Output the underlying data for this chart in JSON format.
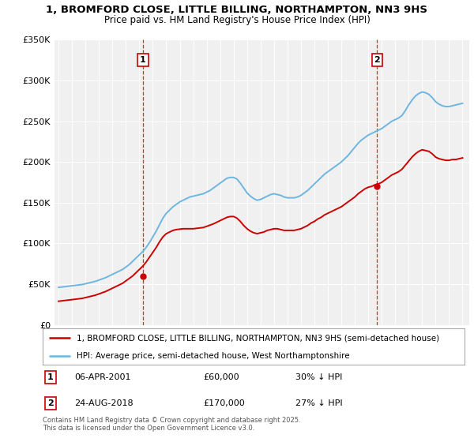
{
  "title": "1, BROMFORD CLOSE, LITTLE BILLING, NORTHAMPTON, NN3 9HS",
  "subtitle": "Price paid vs. HM Land Registry's House Price Index (HPI)",
  "ylabel_ticks": [
    "£0",
    "£50K",
    "£100K",
    "£150K",
    "£200K",
    "£250K",
    "£300K",
    "£350K"
  ],
  "ylim": [
    0,
    350000
  ],
  "xlim_start": 1994.7,
  "xlim_end": 2025.5,
  "legend_line1": "1, BROMFORD CLOSE, LITTLE BILLING, NORTHAMPTON, NN3 9HS (semi-detached house)",
  "legend_line2": "HPI: Average price, semi-detached house, West Northamptonshire",
  "annotation1_text": "06-APR-2001",
  "annotation1_price": "£60,000",
  "annotation1_hpi": "30% ↓ HPI",
  "annotation2_text": "24-AUG-2018",
  "annotation2_price": "£170,000",
  "annotation2_hpi": "27% ↓ HPI",
  "footnote": "Contains HM Land Registry data © Crown copyright and database right 2025.\nThis data is licensed under the Open Government Licence v3.0.",
  "sale1_year": 2001.27,
  "sale1_price": 60000,
  "sale2_year": 2018.65,
  "sale2_price": 170000,
  "hpi_color": "#6eb6e0",
  "price_color": "#cc0000",
  "background_color": "#f0f0f0",
  "grid_color": "#ffffff",
  "hpi_years": [
    1995.0,
    1995.25,
    1995.5,
    1995.75,
    1996.0,
    1996.25,
    1996.5,
    1996.75,
    1997.0,
    1997.25,
    1997.5,
    1997.75,
    1998.0,
    1998.25,
    1998.5,
    1998.75,
    1999.0,
    1999.25,
    1999.5,
    1999.75,
    2000.0,
    2000.25,
    2000.5,
    2000.75,
    2001.0,
    2001.25,
    2001.5,
    2001.75,
    2002.0,
    2002.25,
    2002.5,
    2002.75,
    2003.0,
    2003.25,
    2003.5,
    2003.75,
    2004.0,
    2004.25,
    2004.5,
    2004.75,
    2005.0,
    2005.25,
    2005.5,
    2005.75,
    2006.0,
    2006.25,
    2006.5,
    2006.75,
    2007.0,
    2007.25,
    2007.5,
    2007.75,
    2008.0,
    2008.25,
    2008.5,
    2008.75,
    2009.0,
    2009.25,
    2009.5,
    2009.75,
    2010.0,
    2010.25,
    2010.5,
    2010.75,
    2011.0,
    2011.25,
    2011.5,
    2011.75,
    2012.0,
    2012.25,
    2012.5,
    2012.75,
    2013.0,
    2013.25,
    2013.5,
    2013.75,
    2014.0,
    2014.25,
    2014.5,
    2014.75,
    2015.0,
    2015.25,
    2015.5,
    2015.75,
    2016.0,
    2016.25,
    2016.5,
    2016.75,
    2017.0,
    2017.25,
    2017.5,
    2017.75,
    2018.0,
    2018.25,
    2018.5,
    2018.75,
    2019.0,
    2019.25,
    2019.5,
    2019.75,
    2020.0,
    2020.25,
    2020.5,
    2020.75,
    2021.0,
    2021.25,
    2021.5,
    2021.75,
    2022.0,
    2022.25,
    2022.5,
    2022.75,
    2023.0,
    2023.25,
    2023.5,
    2023.75,
    2024.0,
    2024.25,
    2024.5,
    2024.75,
    2025.0
  ],
  "hpi_values": [
    46000,
    46500,
    47000,
    47500,
    48000,
    48500,
    49000,
    49500,
    50500,
    51500,
    52500,
    53500,
    55000,
    56500,
    58000,
    60000,
    62000,
    64000,
    66000,
    68000,
    71000,
    74000,
    78000,
    82000,
    86000,
    90000,
    95000,
    101000,
    108000,
    115000,
    123000,
    131000,
    137000,
    141000,
    145000,
    148000,
    151000,
    153000,
    155000,
    157000,
    158000,
    159000,
    160000,
    161000,
    163000,
    165000,
    168000,
    171000,
    174000,
    177000,
    180000,
    181000,
    181000,
    179000,
    174000,
    168000,
    162000,
    158000,
    155000,
    153000,
    154000,
    156000,
    158000,
    160000,
    161000,
    160000,
    159000,
    157000,
    156000,
    156000,
    156000,
    157000,
    159000,
    162000,
    165000,
    169000,
    173000,
    177000,
    181000,
    185000,
    188000,
    191000,
    194000,
    197000,
    200000,
    204000,
    208000,
    213000,
    218000,
    223000,
    227000,
    230000,
    233000,
    235000,
    237000,
    239000,
    241000,
    244000,
    247000,
    250000,
    252000,
    254000,
    257000,
    263000,
    270000,
    276000,
    281000,
    284000,
    286000,
    285000,
    283000,
    279000,
    274000,
    271000,
    269000,
    268000,
    268000,
    269000,
    270000,
    271000,
    272000
  ],
  "price_years": [
    1995.0,
    1995.25,
    1995.5,
    1995.75,
    1996.0,
    1996.25,
    1996.5,
    1996.75,
    1997.0,
    1997.25,
    1997.5,
    1997.75,
    1998.0,
    1998.25,
    1998.5,
    1998.75,
    1999.0,
    1999.25,
    1999.5,
    1999.75,
    2000.0,
    2000.25,
    2000.5,
    2000.75,
    2001.0,
    2001.25,
    2001.5,
    2001.75,
    2002.0,
    2002.25,
    2002.5,
    2002.75,
    2003.0,
    2003.25,
    2003.5,
    2003.75,
    2004.0,
    2004.25,
    2004.5,
    2004.75,
    2005.0,
    2005.25,
    2005.5,
    2005.75,
    2006.0,
    2006.25,
    2006.5,
    2006.75,
    2007.0,
    2007.25,
    2007.5,
    2007.75,
    2008.0,
    2008.25,
    2008.5,
    2008.75,
    2009.0,
    2009.25,
    2009.5,
    2009.75,
    2010.0,
    2010.25,
    2010.5,
    2010.75,
    2011.0,
    2011.25,
    2011.5,
    2011.75,
    2012.0,
    2012.25,
    2012.5,
    2012.75,
    2013.0,
    2013.25,
    2013.5,
    2013.75,
    2014.0,
    2014.25,
    2014.5,
    2014.75,
    2015.0,
    2015.25,
    2015.5,
    2015.75,
    2016.0,
    2016.25,
    2016.5,
    2016.75,
    2017.0,
    2017.25,
    2017.5,
    2017.75,
    2018.0,
    2018.25,
    2018.5,
    2018.75,
    2019.0,
    2019.25,
    2019.5,
    2019.75,
    2020.0,
    2020.25,
    2020.5,
    2020.75,
    2021.0,
    2021.25,
    2021.5,
    2021.75,
    2022.0,
    2022.25,
    2022.5,
    2022.75,
    2023.0,
    2023.25,
    2023.5,
    2023.75,
    2024.0,
    2024.25,
    2024.5,
    2024.75,
    2025.0
  ],
  "price_values": [
    29000,
    29500,
    30000,
    30500,
    31000,
    31500,
    32000,
    32500,
    33500,
    34500,
    35500,
    36500,
    38000,
    39500,
    41000,
    43000,
    45000,
    47000,
    49000,
    51000,
    54000,
    57000,
    60000,
    64000,
    68000,
    72000,
    77000,
    83000,
    89000,
    95000,
    102000,
    108000,
    112000,
    114000,
    116000,
    117000,
    117500,
    118000,
    118000,
    118000,
    118000,
    118500,
    119000,
    119500,
    121000,
    122500,
    124000,
    126000,
    128000,
    130000,
    132000,
    133000,
    133000,
    131000,
    127000,
    122000,
    118000,
    115000,
    113000,
    112000,
    113000,
    114000,
    116000,
    117000,
    118000,
    118000,
    117000,
    116000,
    116000,
    116000,
    116000,
    117000,
    118000,
    120000,
    122000,
    125000,
    127000,
    130000,
    132000,
    135000,
    137000,
    139000,
    141000,
    143000,
    145000,
    148000,
    151000,
    154000,
    157000,
    161000,
    164000,
    167000,
    169000,
    170000,
    172000,
    173000,
    175000,
    178000,
    181000,
    184000,
    186000,
    188000,
    191000,
    196000,
    201000,
    206000,
    210000,
    213000,
    215000,
    214000,
    213000,
    210000,
    206000,
    204000,
    203000,
    202000,
    202000,
    203000,
    203000,
    204000,
    205000
  ]
}
